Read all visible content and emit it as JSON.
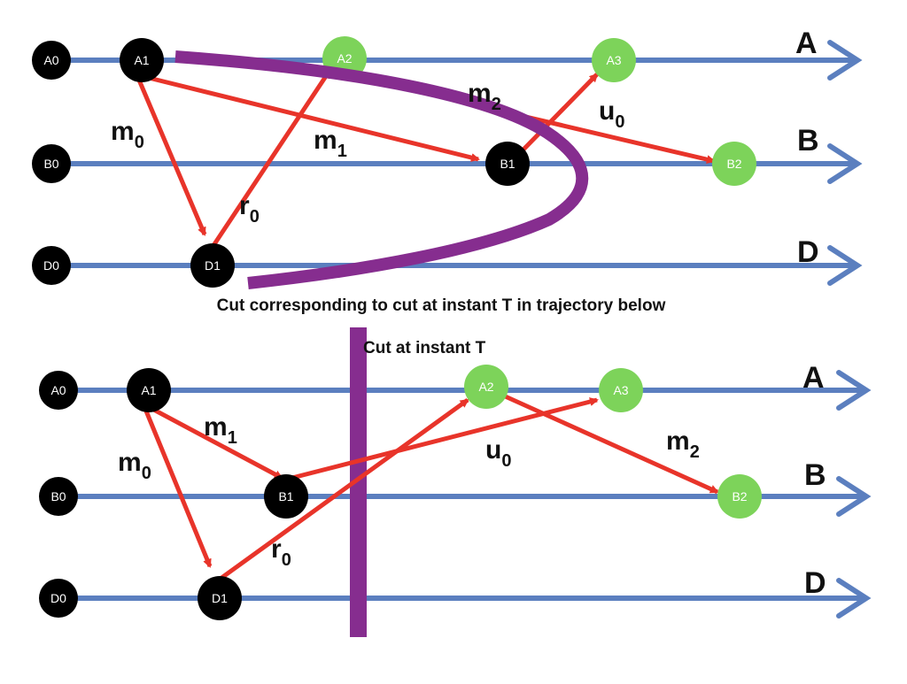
{
  "colors": {
    "timeline": "#5b7fbf",
    "message": "#e8342a",
    "cut": "#862d8f",
    "past_event": "#000000",
    "future_event": "#7dd35a",
    "event_text": "#ffffff"
  },
  "top": {
    "processes": {
      "a": "A",
      "b": "B",
      "d": "D"
    },
    "events": {
      "a0": "A0",
      "a1": "A1",
      "a2": "A2",
      "a3": "A3",
      "b0": "B0",
      "b1": "B1",
      "b2": "B2",
      "d0": "D0",
      "d1": "D1"
    },
    "messages": {
      "m0": {
        "base": "m",
        "sub": "0"
      },
      "m1": {
        "base": "m",
        "sub": "1"
      },
      "m2": {
        "base": "m",
        "sub": "2"
      },
      "r0": {
        "base": "r",
        "sub": "0"
      },
      "u0": {
        "base": "u",
        "sub": "0"
      }
    },
    "caption": "Cut corresponding to cut at instant T in trajectory below"
  },
  "bottom": {
    "processes": {
      "a": "A",
      "b": "B",
      "d": "D"
    },
    "events": {
      "a0": "A0",
      "a1": "A1",
      "a2": "A2",
      "a3": "A3",
      "b0": "B0",
      "b1": "B1",
      "b2": "B2",
      "d0": "D0",
      "d1": "D1"
    },
    "messages": {
      "m0": {
        "base": "m",
        "sub": "0"
      },
      "m1": {
        "base": "m",
        "sub": "1"
      },
      "m2": {
        "base": "m",
        "sub": "2"
      },
      "r0": {
        "base": "r",
        "sub": "0"
      },
      "u0": {
        "base": "u",
        "sub": "0"
      }
    },
    "cut_label": "Cut at instant T"
  }
}
